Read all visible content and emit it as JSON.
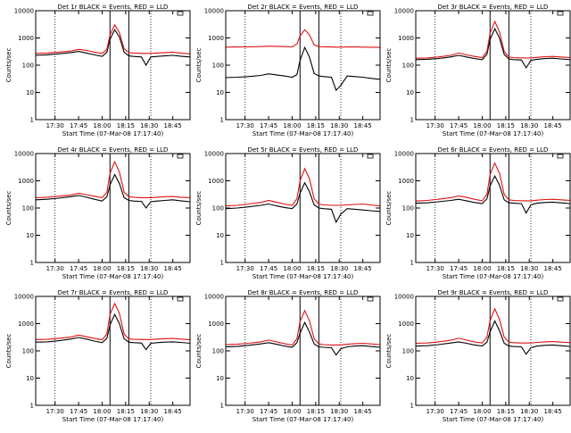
{
  "colors": {
    "events": "#000000",
    "lld": "#e01010",
    "frame": "#000000"
  },
  "shared_axes": {
    "ylabel": "Counts/sec",
    "xlabel": "Start Time (07-Mar-08 17:17:40)",
    "y_scale": "log",
    "ylim": [
      1,
      10000
    ],
    "y_ticks": [
      1,
      10,
      100,
      1000,
      10000
    ],
    "y_tick_labels": [
      "1",
      "10",
      "100",
      "1000",
      "10000"
    ],
    "xlim": [
      "17:17:40",
      "18:56:00"
    ],
    "x_tick_labels": [
      "17:30",
      "17:45",
      "18:00",
      "18:15",
      "18:30",
      "18:45"
    ],
    "x_ticks": [
      "17:30",
      "17:45",
      "18:00",
      "18:15",
      "18:30",
      "18:45"
    ],
    "dotted_vlines": [
      "17:30",
      "18:31"
    ],
    "solid_vlines": [
      "18:05",
      "18:17"
    ]
  },
  "chart_data": [
    {
      "type": "line",
      "title": "Det 1r BLACK = Events, RED = LLD",
      "grid": "off",
      "x": [
        "17:17:40",
        "17:25",
        "17:32",
        "17:40",
        "17:45",
        "17:50",
        "17:55",
        "18:00",
        "18:03",
        "18:05",
        "18:08",
        "18:11",
        "18:14",
        "18:17",
        "18:20",
        "18:25",
        "18:28",
        "18:31",
        "18:35",
        "18:40",
        "18:45",
        "18:50",
        "18:56"
      ],
      "series": [
        {
          "name": "Events",
          "values": [
            230,
            240,
            260,
            290,
            320,
            280,
            240,
            210,
            300,
            900,
            2000,
            1100,
            300,
            220,
            210,
            200,
            100,
            200,
            210,
            220,
            230,
            215,
            200
          ]
        },
        {
          "name": "LLD",
          "values": [
            270,
            280,
            300,
            330,
            380,
            350,
            300,
            270,
            380,
            1300,
            3000,
            1600,
            400,
            290,
            280,
            270,
            270,
            270,
            280,
            290,
            300,
            280,
            260
          ]
        }
      ]
    },
    {
      "type": "line",
      "title": "Det 2r BLACK = Events, RED = LLD",
      "grid": "off",
      "x": [
        "17:17:40",
        "17:25",
        "17:32",
        "17:40",
        "17:45",
        "17:50",
        "17:55",
        "18:00",
        "18:03",
        "18:05",
        "18:08",
        "18:11",
        "18:14",
        "18:17",
        "18:20",
        "18:25",
        "18:28",
        "18:31",
        "18:35",
        "18:40",
        "18:45",
        "18:50",
        "18:56"
      ],
      "series": [
        {
          "name": "Events",
          "values": [
            35,
            36,
            38,
            42,
            48,
            44,
            40,
            36,
            45,
            150,
            450,
            200,
            50,
            40,
            38,
            36,
            12,
            18,
            40,
            38,
            36,
            33,
            30
          ]
        },
        {
          "name": "LLD",
          "values": [
            460,
            465,
            470,
            480,
            500,
            490,
            480,
            470,
            600,
            1200,
            2000,
            1300,
            560,
            480,
            470,
            465,
            460,
            460,
            470,
            465,
            460,
            455,
            450
          ]
        }
      ]
    },
    {
      "type": "line",
      "title": "Det 3r BLACK = Events, RED = LLD",
      "grid": "off",
      "x": [
        "17:17:40",
        "17:25",
        "17:32",
        "17:40",
        "17:45",
        "17:50",
        "17:55",
        "18:00",
        "18:03",
        "18:05",
        "18:08",
        "18:11",
        "18:14",
        "18:17",
        "18:20",
        "18:25",
        "18:28",
        "18:31",
        "18:35",
        "18:40",
        "18:45",
        "18:50",
        "18:56"
      ],
      "series": [
        {
          "name": "Events",
          "values": [
            160,
            165,
            175,
            200,
            230,
            200,
            175,
            160,
            250,
            900,
            2200,
            1000,
            250,
            170,
            160,
            155,
            80,
            150,
            165,
            175,
            180,
            170,
            160
          ]
        },
        {
          "name": "LLD",
          "values": [
            180,
            185,
            200,
            230,
            280,
            240,
            210,
            190,
            320,
            1500,
            4000,
            1700,
            320,
            200,
            190,
            185,
            185,
            185,
            195,
            205,
            210,
            200,
            190
          ]
        }
      ]
    },
    {
      "type": "line",
      "title": "Det 4r BLACK = Events, RED = LLD",
      "grid": "off",
      "x": [
        "17:17:40",
        "17:25",
        "17:32",
        "17:40",
        "17:45",
        "17:50",
        "17:55",
        "18:00",
        "18:03",
        "18:05",
        "18:08",
        "18:11",
        "18:14",
        "18:17",
        "18:20",
        "18:25",
        "18:28",
        "18:31",
        "18:35",
        "18:40",
        "18:45",
        "18:50",
        "18:56"
      ],
      "series": [
        {
          "name": "Events",
          "values": [
            200,
            210,
            230,
            260,
            290,
            250,
            210,
            180,
            260,
            700,
            1700,
            800,
            240,
            190,
            180,
            175,
            100,
            170,
            180,
            190,
            200,
            185,
            170
          ]
        },
        {
          "name": "LLD",
          "values": [
            240,
            250,
            270,
            300,
            350,
            310,
            270,
            240,
            380,
            1900,
            5000,
            2100,
            380,
            260,
            250,
            240,
            240,
            240,
            250,
            260,
            265,
            250,
            240
          ]
        }
      ]
    },
    {
      "type": "line",
      "title": "Det 5r BLACK = Events, RED = LLD",
      "grid": "off",
      "x": [
        "17:17:40",
        "17:25",
        "17:32",
        "17:40",
        "17:45",
        "17:50",
        "17:55",
        "18:00",
        "18:03",
        "18:05",
        "18:08",
        "18:11",
        "18:14",
        "18:17",
        "18:20",
        "18:25",
        "18:28",
        "18:31",
        "18:35",
        "18:40",
        "18:45",
        "18:50",
        "18:56"
      ],
      "series": [
        {
          "name": "Events",
          "values": [
            95,
            100,
            110,
            125,
            140,
            120,
            105,
            95,
            140,
            350,
            850,
            400,
            130,
            100,
            95,
            90,
            30,
            60,
            95,
            90,
            85,
            80,
            75
          ]
        },
        {
          "name": "LLD",
          "values": [
            120,
            125,
            140,
            160,
            190,
            165,
            140,
            125,
            220,
            1000,
            2800,
            1200,
            220,
            140,
            130,
            125,
            125,
            125,
            130,
            135,
            140,
            130,
            120
          ]
        }
      ]
    },
    {
      "type": "line",
      "title": "Det 6r BLACK = Events, RED = LLD",
      "grid": "off",
      "x": [
        "17:17:40",
        "17:25",
        "17:32",
        "17:40",
        "17:45",
        "17:50",
        "17:55",
        "18:00",
        "18:03",
        "18:05",
        "18:08",
        "18:11",
        "18:14",
        "18:17",
        "18:20",
        "18:25",
        "18:28",
        "18:31",
        "18:35",
        "18:40",
        "18:45",
        "18:50",
        "18:56"
      ],
      "series": [
        {
          "name": "Events",
          "values": [
            150,
            155,
            170,
            190,
            210,
            185,
            160,
            145,
            220,
            650,
            1500,
            700,
            200,
            155,
            150,
            145,
            65,
            130,
            150,
            160,
            165,
            155,
            145
          ]
        },
        {
          "name": "LLD",
          "values": [
            180,
            190,
            210,
            240,
            280,
            245,
            210,
            185,
            320,
            1700,
            4500,
            1900,
            320,
            200,
            190,
            185,
            185,
            185,
            195,
            205,
            210,
            200,
            190
          ]
        }
      ]
    },
    {
      "type": "line",
      "title": "Det 7r BLACK = Events, RED = LLD",
      "grid": "off",
      "x": [
        "17:17:40",
        "17:25",
        "17:32",
        "17:40",
        "17:45",
        "17:50",
        "17:55",
        "18:00",
        "18:03",
        "18:05",
        "18:08",
        "18:11",
        "18:14",
        "18:17",
        "18:20",
        "18:25",
        "18:28",
        "18:31",
        "18:35",
        "18:40",
        "18:45",
        "18:50",
        "18:56"
      ],
      "series": [
        {
          "name": "Events",
          "values": [
            210,
            215,
            235,
            270,
            310,
            270,
            230,
            200,
            290,
            900,
            2200,
            1000,
            280,
            210,
            200,
            195,
            110,
            190,
            200,
            210,
            215,
            205,
            190
          ]
        },
        {
          "name": "LLD",
          "values": [
            260,
            265,
            285,
            320,
            380,
            330,
            285,
            255,
            420,
            2200,
            5500,
            2400,
            410,
            275,
            265,
            260,
            260,
            260,
            270,
            280,
            285,
            270,
            255
          ]
        }
      ]
    },
    {
      "type": "line",
      "title": "Det 8r BLACK = Events, RED = LLD",
      "grid": "off",
      "x": [
        "17:17:40",
        "17:25",
        "17:32",
        "17:40",
        "17:45",
        "17:50",
        "17:55",
        "18:00",
        "18:03",
        "18:05",
        "18:08",
        "18:11",
        "18:14",
        "18:17",
        "18:20",
        "18:25",
        "18:28",
        "18:31",
        "18:35",
        "18:40",
        "18:45",
        "18:50",
        "18:56"
      ],
      "series": [
        {
          "name": "Events",
          "values": [
            140,
            145,
            160,
            180,
            200,
            175,
            150,
            135,
            200,
            450,
            1100,
            500,
            180,
            140,
            135,
            130,
            70,
            120,
            140,
            150,
            155,
            145,
            135
          ]
        },
        {
          "name": "LLD",
          "values": [
            170,
            175,
            190,
            215,
            250,
            215,
            185,
            165,
            280,
            1200,
            3000,
            1300,
            280,
            180,
            170,
            165,
            165,
            165,
            175,
            185,
            190,
            180,
            170
          ]
        }
      ]
    },
    {
      "type": "line",
      "title": "Det 9r BLACK = Events, RED = LLD",
      "grid": "off",
      "x": [
        "17:17:40",
        "17:25",
        "17:32",
        "17:40",
        "17:45",
        "17:50",
        "17:55",
        "18:00",
        "18:03",
        "18:05",
        "18:08",
        "18:11",
        "18:14",
        "18:17",
        "18:20",
        "18:25",
        "18:28",
        "18:31",
        "18:35",
        "18:40",
        "18:45",
        "18:50",
        "18:56"
      ],
      "series": [
        {
          "name": "Events",
          "values": [
            150,
            155,
            170,
            195,
            215,
            190,
            165,
            150,
            210,
            500,
            1250,
            560,
            190,
            150,
            145,
            140,
            75,
            130,
            150,
            160,
            165,
            155,
            145
          ]
        },
        {
          "name": "LLD",
          "values": [
            190,
            195,
            215,
            245,
            290,
            250,
            215,
            195,
            320,
            1300,
            3500,
            1450,
            320,
            210,
            200,
            195,
            195,
            195,
            205,
            215,
            220,
            210,
            200
          ]
        }
      ]
    }
  ]
}
